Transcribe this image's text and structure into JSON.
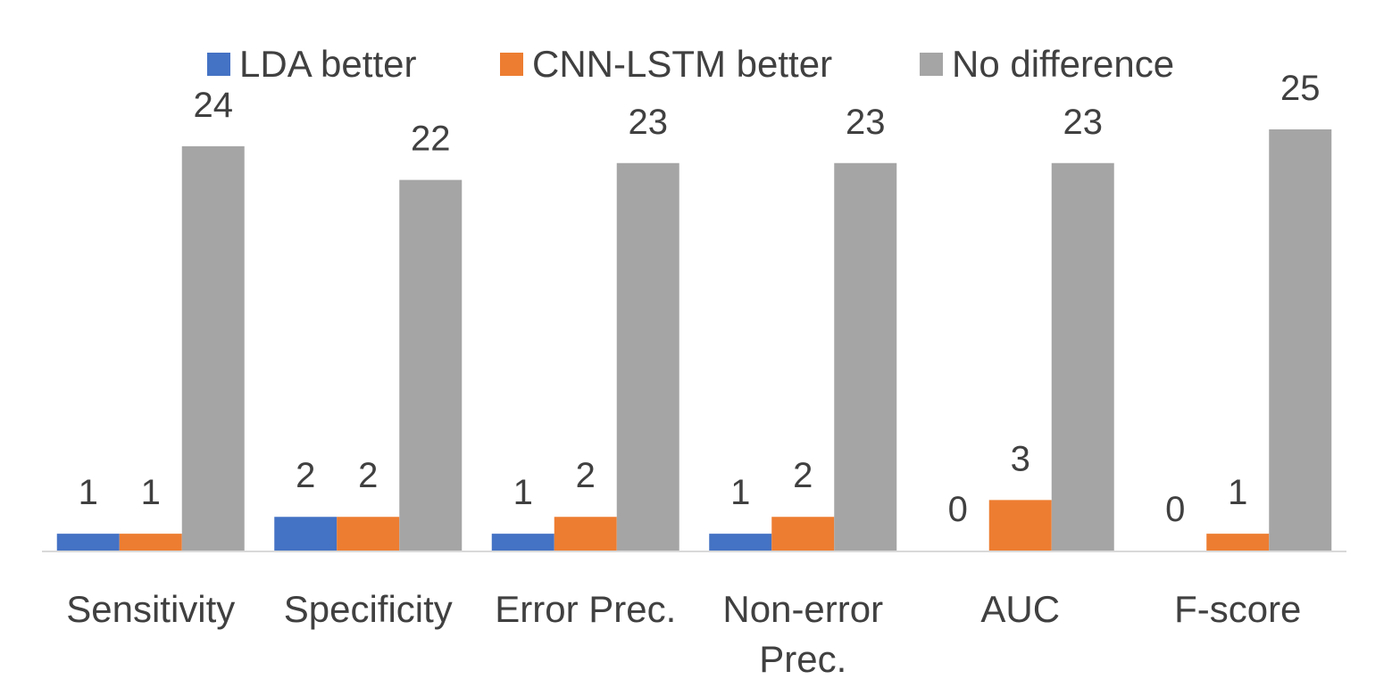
{
  "chart_data": {
    "type": "bar",
    "title": "",
    "xlabel": "",
    "ylabel": "",
    "categories": [
      "Sensitivity",
      "Specificity",
      "Error Prec.",
      "Non-error Prec.",
      "AUC",
      "F-score"
    ],
    "series": [
      {
        "name": "LDA better",
        "values": [
          1,
          2,
          1,
          1,
          0,
          0
        ],
        "color": "#4472c4"
      },
      {
        "name": "CNN-LSTM better",
        "values": [
          1,
          2,
          2,
          2,
          3,
          1
        ],
        "color": "#ed7d31"
      },
      {
        "name": "No difference",
        "values": [
          24,
          22,
          23,
          23,
          23,
          25
        ],
        "color": "#a5a5a5"
      }
    ],
    "ylim": [
      0,
      25
    ],
    "grid": false,
    "legend_position": "top",
    "data_labels": true,
    "axis_color": "#d9d9d9"
  }
}
